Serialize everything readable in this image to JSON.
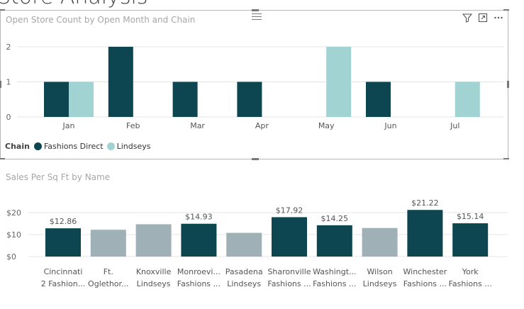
{
  "page": {
    "title": "Store Analysis"
  },
  "visual1": {
    "title": "Open Store Count by Open Month and Chain",
    "toolbar": {
      "filter_icon": "filter-icon",
      "focus_icon": "focus-mode-icon",
      "more_icon": "more-options-icon"
    },
    "legend": {
      "title": "Chain",
      "items": [
        {
          "label": "Fashions Direct",
          "color": "#0d4550"
        },
        {
          "label": "Lindseys",
          "color": "#a1d3d3"
        }
      ]
    }
  },
  "visual2": {
    "title": "Sales Per Sq Ft by Name"
  },
  "chart_data": [
    {
      "type": "bar",
      "title": "Open Store Count by Open Month and Chain",
      "categories": [
        "Jan",
        "Feb",
        "Mar",
        "Apr",
        "May",
        "Jun",
        "Jul"
      ],
      "series": [
        {
          "name": "Fashions Direct",
          "color": "#0d4550",
          "values": [
            1,
            2,
            1,
            1,
            0,
            1,
            0
          ]
        },
        {
          "name": "Lindseys",
          "color": "#a1d3d3",
          "values": [
            1,
            0,
            0,
            0,
            2,
            0,
            1
          ]
        }
      ],
      "ylim": [
        0,
        2
      ],
      "yticks": [
        "0",
        "1",
        "2"
      ],
      "grid": true,
      "legend": "bottom-left"
    },
    {
      "type": "bar",
      "title": "Sales Per Sq Ft by Name",
      "categories": [
        [
          "Cincinnati",
          "2 Fashion..."
        ],
        [
          "Ft.",
          "Oglethor..."
        ],
        [
          "Knoxville",
          "Lindseys"
        ],
        [
          "Monroevi...",
          "Fashions ..."
        ],
        [
          "Pasadena",
          "Lindseys"
        ],
        [
          "Sharonville",
          "Fashions ..."
        ],
        [
          "Washingt...",
          "Fashions ..."
        ],
        [
          "Wilson",
          "Lindseys"
        ],
        [
          "Winchester",
          "Fashions ..."
        ],
        [
          "York",
          "Fashions ..."
        ]
      ],
      "values": [
        12.86,
        12.2,
        14.7,
        14.93,
        10.8,
        17.92,
        14.25,
        13.0,
        21.22,
        15.14
      ],
      "data_labels": [
        "$12.86",
        "",
        "",
        "$14.93",
        "",
        "$17.92",
        "$14.25",
        "",
        "$21.22",
        "$15.14"
      ],
      "highlighted": [
        true,
        false,
        false,
        true,
        false,
        true,
        true,
        false,
        true,
        true
      ],
      "colors": {
        "highlighted": "#0d4550",
        "dimmed": "#9fb1b6"
      },
      "ylim": [
        0,
        20
      ],
      "yticks": [
        "$0",
        "$10",
        "$20"
      ],
      "grid": true
    }
  ]
}
